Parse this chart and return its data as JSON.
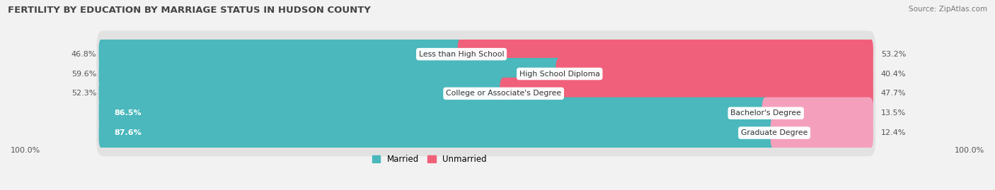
{
  "title": "FERTILITY BY EDUCATION BY MARRIAGE STATUS IN HUDSON COUNTY",
  "source": "Source: ZipAtlas.com",
  "categories": [
    "Less than High School",
    "High School Diploma",
    "College or Associate's Degree",
    "Bachelor's Degree",
    "Graduate Degree"
  ],
  "married": [
    46.8,
    59.6,
    52.3,
    86.5,
    87.6
  ],
  "unmarried": [
    53.2,
    40.4,
    47.7,
    13.5,
    12.4
  ],
  "married_color": "#4ab8bc",
  "unmarried_color_bright": "#f0607a",
  "unmarried_color_light": "#f4a0bc",
  "bg_color": "#f2f2f2",
  "row_bg_color": "#e2e2e2",
  "axis_label_left": "100.0%",
  "axis_label_right": "100.0%",
  "legend_married": "Married",
  "legend_unmarried": "Unmarried",
  "married_inside_threshold": 70,
  "unmarried_bright_threshold": 30
}
